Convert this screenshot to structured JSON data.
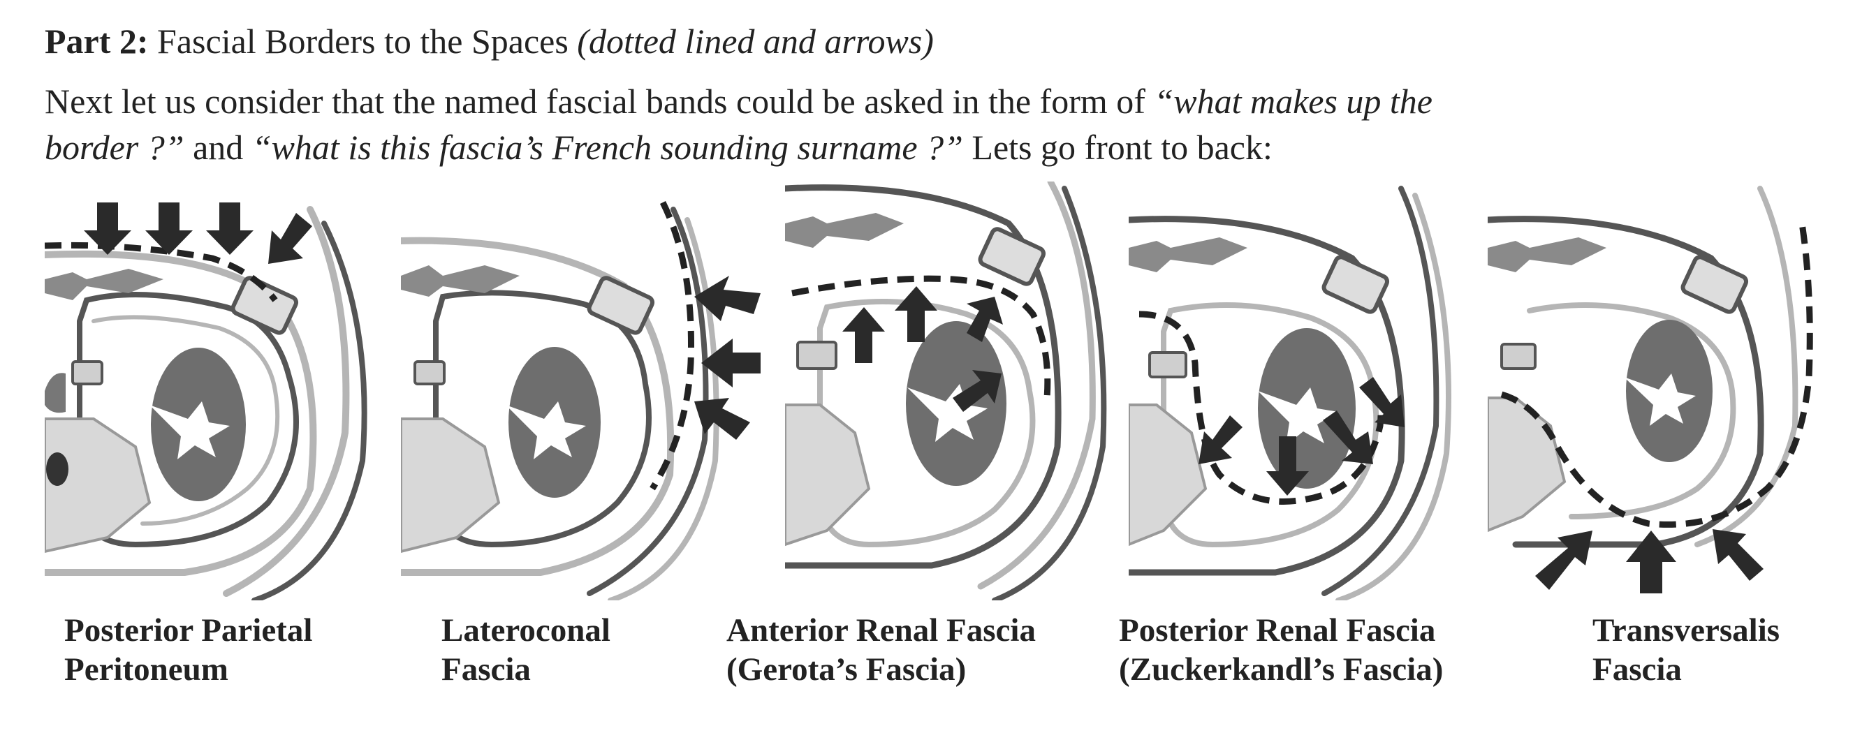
{
  "heading": {
    "part_label": "Part 2:",
    "title": "Fascial Borders to the Spaces",
    "subtitle": "(dotted lined and arrows)"
  },
  "intro": {
    "line1_a": "Next let us consider that the named fascial bands could be asked in the form of ",
    "line1_q": "“what makes up the",
    "line2_q1": "border ?”",
    "line2_and": " and ",
    "line2_q2": "“what is this fascia’s French sounding surname ?”",
    "line2_end": " Lets go front to back:"
  },
  "panels": [
    {
      "caption_line1": "Posterior Parietal",
      "caption_line2": "Peritoneum",
      "icon": "posterior-parietal-peritoneum-diagram-icon"
    },
    {
      "caption_line1": "Lateroconal",
      "caption_line2": "Fascia",
      "icon": "lateroconal-fascia-diagram-icon"
    },
    {
      "caption_line1": "Anterior Renal Fascia",
      "caption_line2": "(Gerota’s Fascia)",
      "icon": "anterior-renal-fascia-diagram-icon"
    },
    {
      "caption_line1": "Posterior Renal Fascia",
      "caption_line2": "(Zuckerkandl’s Fascia)",
      "icon": "posterior-renal-fascia-diagram-icon"
    },
    {
      "caption_line1": "Transversalis",
      "caption_line2": "Fascia",
      "icon": "transversalis-fascia-diagram-icon"
    }
  ],
  "colors": {
    "kidney": "#6e6e6e",
    "outline": "#555555",
    "light_line": "#b5b5b5",
    "arrow": "#2a2a2a",
    "dashed": "#222222",
    "bone": "#d8d8d8"
  }
}
